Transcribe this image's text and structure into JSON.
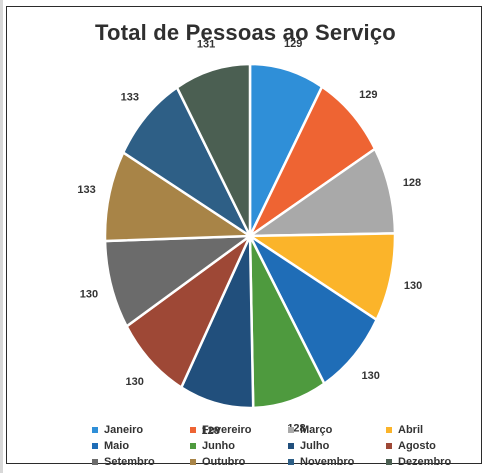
{
  "chart_data": {
    "type": "pie",
    "title": "Total de Pessoas ao Serviço",
    "categories": [
      "Janeiro",
      "Fevereiro",
      "Março",
      "Abril",
      "Maio",
      "Junho",
      "Julho",
      "Agosto",
      "Setembro",
      "Outubro",
      "Novembro",
      "Dezembro"
    ],
    "values": [
      129,
      129,
      128,
      130,
      130,
      128,
      128,
      130,
      130,
      133,
      133,
      131
    ],
    "colors": [
      "#2f8fd8",
      "#ee6433",
      "#a9a9a9",
      "#fbb42a",
      "#1f6db7",
      "#4e9a3e",
      "#214f7c",
      "#9e4836",
      "#6b6b6b",
      "#a88447",
      "#2e5f86",
      "#4b5f52"
    ],
    "legend_position": "bottom"
  }
}
